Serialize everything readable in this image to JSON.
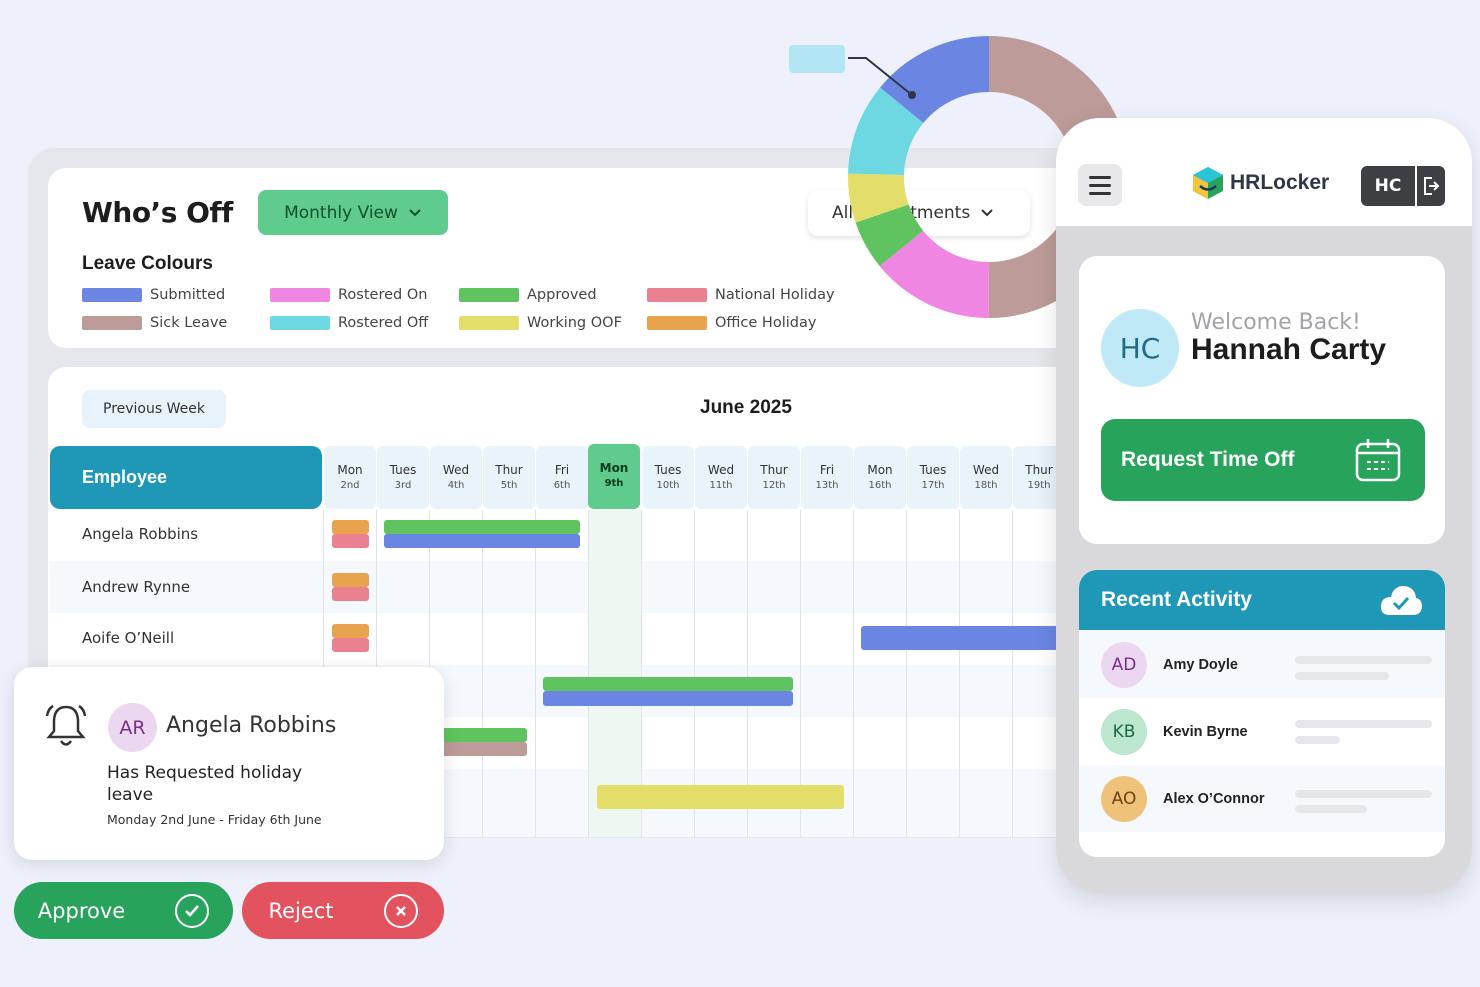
{
  "header": {
    "title": "Who’s Off",
    "view_label": "Monthly View",
    "department_label": "All Departments",
    "leave_colours_title": "Leave Colours"
  },
  "legend": [
    {
      "label": "Submitted",
      "color": "#6b85e3"
    },
    {
      "label": "Sick Leave",
      "color": "#bc9b98"
    },
    {
      "label": "Rostered On",
      "color": "#ef86e2"
    },
    {
      "label": "Rostered Off",
      "color": "#6ed8e2"
    },
    {
      "label": "Approved",
      "color": "#5fc45f"
    },
    {
      "label": "Working OOF",
      "color": "#e3dd6a"
    },
    {
      "label": "National Holiday",
      "color": "#ea8090"
    },
    {
      "label": "Office Holiday",
      "color": "#e9a24e"
    }
  ],
  "calendar": {
    "prev_label": "Previous Week",
    "month": "June 2025",
    "employee_header": "Employee",
    "days": [
      {
        "name": "Mon",
        "date": "2nd"
      },
      {
        "name": "Tues",
        "date": "3rd"
      },
      {
        "name": "Wed",
        "date": "4th"
      },
      {
        "name": "Thur",
        "date": "5th"
      },
      {
        "name": "Fri",
        "date": "6th"
      },
      {
        "name": "Mon",
        "date": "9th"
      },
      {
        "name": "Tues",
        "date": "10th"
      },
      {
        "name": "Wed",
        "date": "11th"
      },
      {
        "name": "Thur",
        "date": "12th"
      },
      {
        "name": "Fri",
        "date": "13th"
      },
      {
        "name": "Mon",
        "date": "16th"
      },
      {
        "name": "Tues",
        "date": "17th"
      },
      {
        "name": "Wed",
        "date": "18th"
      },
      {
        "name": "Thur",
        "date": "19th"
      }
    ],
    "employees": [
      "Angela Robbins",
      "Andrew Rynne",
      "Aoife O’Neill"
    ]
  },
  "phone": {
    "brand": "HRLocker",
    "user_initials": "HC",
    "welcome": "Welcome Back!",
    "user_name": "Hannah Carty",
    "request_label": "Request Time Off",
    "activity_title": "Recent Activity",
    "activity": [
      {
        "initials": "AD",
        "name": "Amy Doyle",
        "bg": "#ecd7f1",
        "fg": "#7a2d8a"
      },
      {
        "initials": "KB",
        "name": "Kevin Byrne",
        "bg": "#bde6cf",
        "fg": "#1d6b45"
      },
      {
        "initials": "AO",
        "name": "Alex O’Connor",
        "bg": "#f0c178",
        "fg": "#6e4410"
      }
    ]
  },
  "notification": {
    "initials": "AR",
    "name": "Angela Robbins",
    "message": "Has Requested holiday leave",
    "dates": "Monday 2nd June - Friday 6th June",
    "approve_label": "Approve",
    "reject_label": "Reject"
  },
  "donut_colors": [
    "#bc9b98",
    "#ef86e2",
    "#5fc45f",
    "#e3dd6a",
    "#6ed8e2",
    "#6b85e3"
  ]
}
